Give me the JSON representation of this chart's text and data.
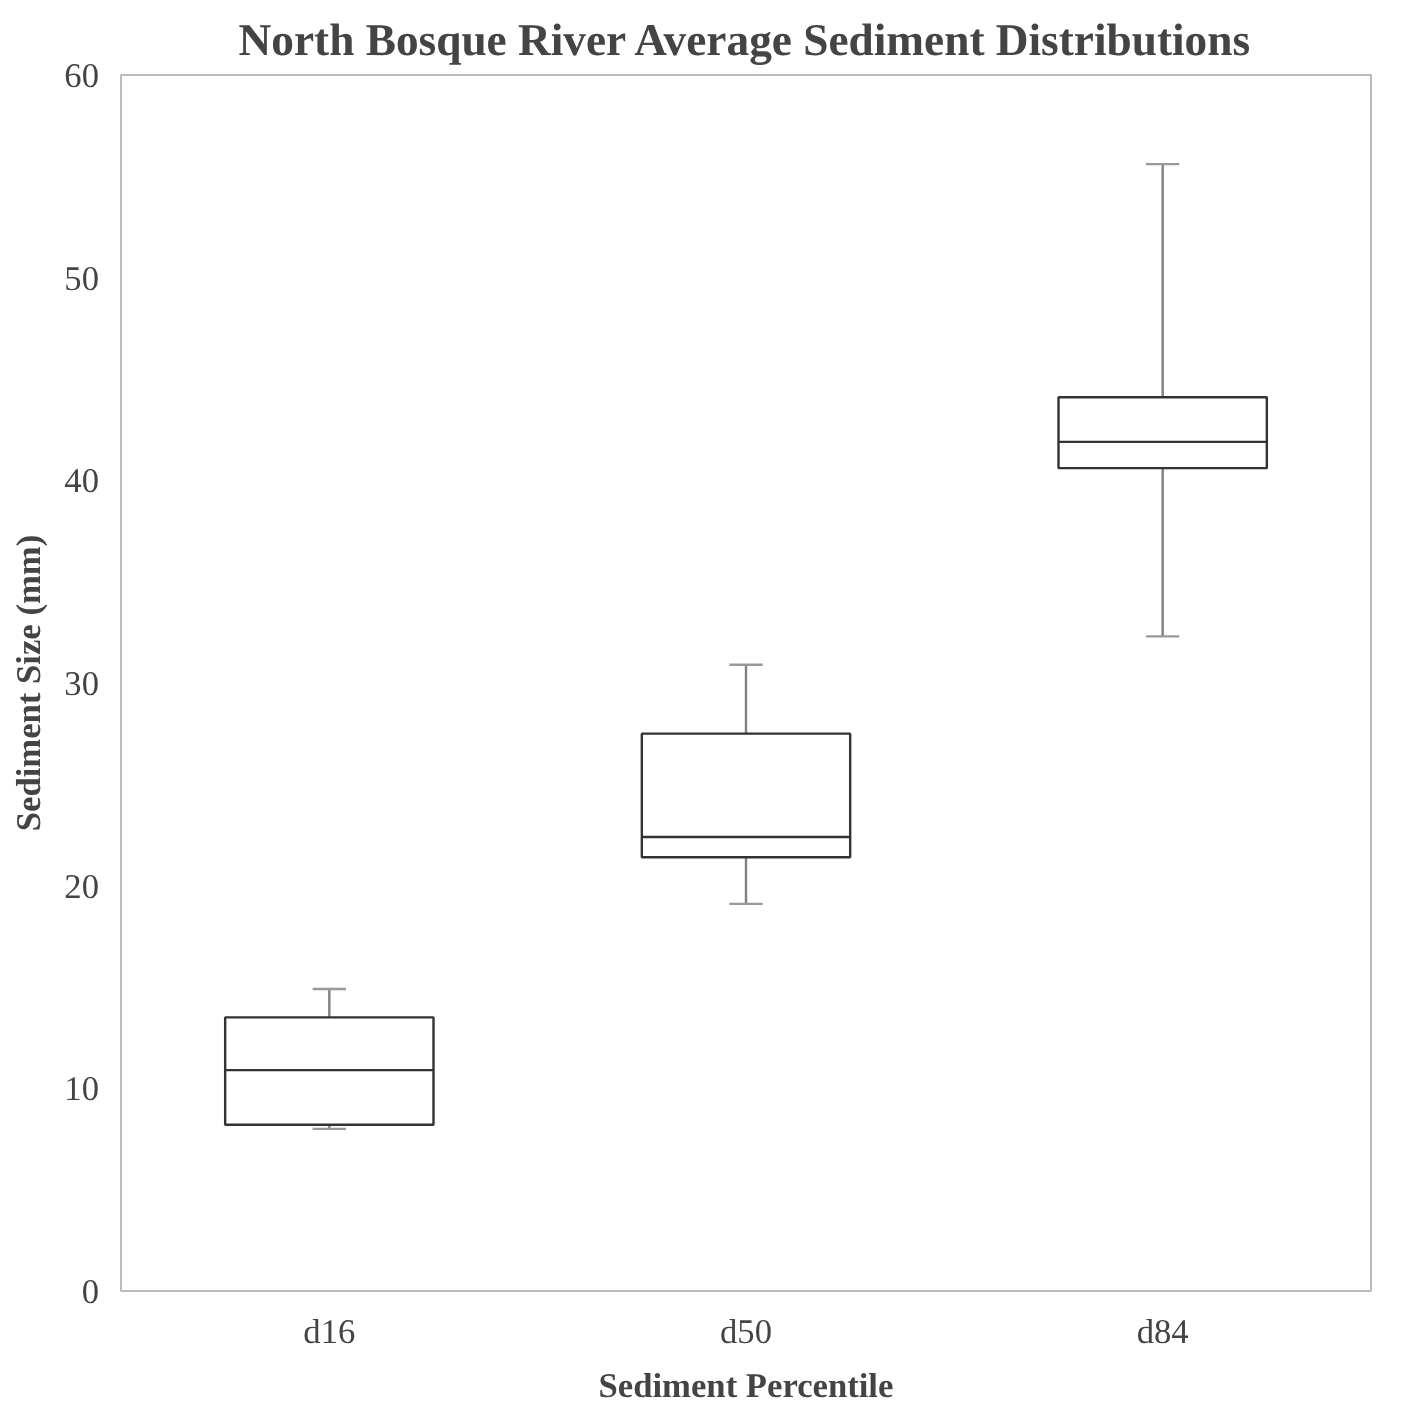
{
  "chart_data": {
    "type": "box",
    "title": "North Bosque River Average Sediment Distributions",
    "xlabel": "Sediment Percentile",
    "ylabel": "Sediment Size (mm)",
    "categories": [
      "d16",
      "d50",
      "d84"
    ],
    "boxes": [
      {
        "low": 8.0,
        "q1": 8.2,
        "median": 10.9,
        "q3": 13.5,
        "high": 14.9
      },
      {
        "low": 19.1,
        "q1": 21.4,
        "median": 22.4,
        "q3": 27.5,
        "high": 30.9
      },
      {
        "low": 32.3,
        "q1": 40.6,
        "median": 41.9,
        "q3": 44.1,
        "high": 55.6
      }
    ],
    "ylim": [
      0,
      60
    ],
    "yticks": [
      0,
      10,
      20,
      30,
      40,
      50,
      60
    ],
    "grid": false
  }
}
